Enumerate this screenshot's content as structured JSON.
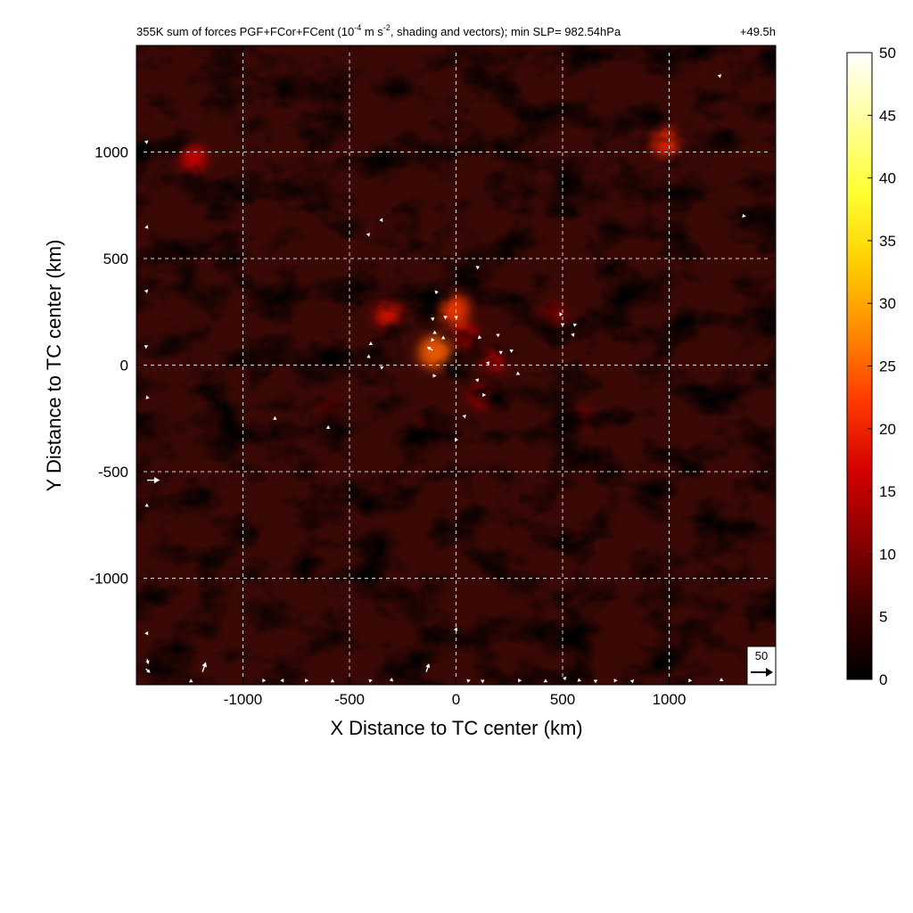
{
  "chart_data": {
    "type": "heatmap",
    "title": {
      "prefix": "355K sum of forces PGF+FCor+FCent (10",
      "exp1": "-4",
      "mid": " m s",
      "exp2": "-2",
      "suffix": ", shading and vectors); min SLP= 982.54hPa",
      "time": "+49.5h"
    },
    "xlabel": "X Distance to TC center (km)",
    "ylabel": "Y Distance to TC center (km)",
    "xlim": [
      -1500,
      1500
    ],
    "ylim": [
      -1500,
      1500
    ],
    "xticks": [
      -1000,
      -500,
      0,
      500,
      1000
    ],
    "yticks": [
      -1000,
      -500,
      0,
      500,
      1000
    ],
    "xtick_labels": [
      "-1000",
      "-500",
      "0",
      "500",
      "1000"
    ],
    "ytick_labels": [
      "-1000",
      "-500",
      "0",
      "500",
      "1000"
    ],
    "grid": true,
    "colorbar": {
      "min": 0,
      "max": 50,
      "ticks": [
        0,
        5,
        10,
        15,
        20,
        25,
        30,
        35,
        40,
        45,
        50
      ],
      "tick_labels": [
        "0",
        "5",
        "10",
        "15",
        "20",
        "25",
        "30",
        "35",
        "40",
        "45",
        "50"
      ],
      "colormap": "hot",
      "colors": [
        "#000000",
        "#3a0000",
        "#8a0000",
        "#d40000",
        "#ff3a00",
        "#ff8a00",
        "#ffd000",
        "#ffff33",
        "#ffff99",
        "#ffffff"
      ]
    },
    "field_background": "#3a0805",
    "field_description": "filamentary field, mostly 3-10 units; spiral bands near the center reaching about 15-25",
    "hotspots": [
      {
        "x": -10,
        "y": 260,
        "value": 22
      },
      {
        "x": -100,
        "y": 60,
        "value": 25
      },
      {
        "x": 40,
        "y": 140,
        "value": 16
      },
      {
        "x": 180,
        "y": 20,
        "value": 14
      },
      {
        "x": 120,
        "y": -140,
        "value": 15
      },
      {
        "x": -320,
        "y": 240,
        "value": 18
      },
      {
        "x": -1230,
        "y": 970,
        "value": 17
      },
      {
        "x": 985,
        "y": 1045,
        "value": 20
      },
      {
        "x": 460,
        "y": 240,
        "value": 12
      },
      {
        "x": -120,
        "y": -300,
        "value": 11
      },
      {
        "x": 600,
        "y": -250,
        "value": 10
      },
      {
        "x": -600,
        "y": -200,
        "value": 9
      }
    ],
    "reference_vector": {
      "label": "50",
      "u": 50,
      "v": 0
    },
    "vectors": [
      {
        "x": -1450,
        "y": -540,
        "u": 45,
        "v": 0
      },
      {
        "x": -1190,
        "y": -1440,
        "u": 12,
        "v": 35
      },
      {
        "x": -140,
        "y": -1440,
        "u": 10,
        "v": 30
      },
      {
        "x": -1455,
        "y": -1425,
        "u": 15,
        "v": -15
      },
      {
        "x": -1450,
        "y": -1380,
        "u": 5,
        "v": -18
      },
      {
        "x": -1250,
        "y": -1480,
        "u": 12,
        "v": -6
      },
      {
        "x": -110,
        "y": 70,
        "u": -20,
        "v": 12
      },
      {
        "x": -60,
        "y": 120,
        "u": 0,
        "v": 14
      },
      {
        "x": -50,
        "y": 230,
        "u": 0,
        "v": -12
      },
      {
        "x": 0,
        "y": 230,
        "u": 2,
        "v": -12
      },
      {
        "x": -90,
        "y": 340,
        "u": -8,
        "v": 8
      },
      {
        "x": -110,
        "y": 220,
        "u": 2,
        "v": -10
      },
      {
        "x": -100,
        "y": 150,
        "u": 0,
        "v": 10
      },
      {
        "x": -110,
        "y": 120,
        "u": -6,
        "v": -8
      },
      {
        "x": 110,
        "y": 130,
        "u": -6,
        "v": -6
      },
      {
        "x": 200,
        "y": 140,
        "u": -10,
        "v": 4
      },
      {
        "x": 260,
        "y": 70,
        "u": 0,
        "v": -10
      },
      {
        "x": 210,
        "y": 60,
        "u": 0,
        "v": -8
      },
      {
        "x": 150,
        "y": 10,
        "u": -8,
        "v": 2
      },
      {
        "x": 100,
        "y": -70,
        "u": -8,
        "v": 2
      },
      {
        "x": 290,
        "y": -40,
        "u": 8,
        "v": -4
      },
      {
        "x": 130,
        "y": -140,
        "u": 8,
        "v": 0
      },
      {
        "x": 40,
        "y": -240,
        "u": 2,
        "v": -8
      },
      {
        "x": 0,
        "y": -350,
        "u": -4,
        "v": -8
      },
      {
        "x": 100,
        "y": 460,
        "u": -6,
        "v": 4
      },
      {
        "x": -350,
        "y": 680,
        "u": 4,
        "v": 8
      },
      {
        "x": -410,
        "y": 610,
        "u": 2,
        "v": -6
      },
      {
        "x": -400,
        "y": 100,
        "u": 0,
        "v": 8
      },
      {
        "x": -410,
        "y": 40,
        "u": 0,
        "v": 8
      },
      {
        "x": -350,
        "y": -10,
        "u": -6,
        "v": 4
      },
      {
        "x": -100,
        "y": -50,
        "u": 6,
        "v": 0
      },
      {
        "x": 490,
        "y": 240,
        "u": -4,
        "v": 6
      },
      {
        "x": 500,
        "y": 190,
        "u": 0,
        "v": -8
      },
      {
        "x": 560,
        "y": 190,
        "u": 6,
        "v": 2
      },
      {
        "x": 550,
        "y": 140,
        "u": 2,
        "v": -6
      },
      {
        "x": 1350,
        "y": 700,
        "u": 8,
        "v": -2
      },
      {
        "x": -850,
        "y": -250,
        "u": 0,
        "v": 8
      },
      {
        "x": -600,
        "y": -290,
        "u": 0,
        "v": 6
      },
      {
        "x": -1450,
        "y": 1050,
        "u": 4,
        "v": 4
      },
      {
        "x": -1450,
        "y": 650,
        "u": 2,
        "v": 6
      },
      {
        "x": -1450,
        "y": 350,
        "u": 4,
        "v": 4
      },
      {
        "x": -1450,
        "y": 90,
        "u": 4,
        "v": 2
      },
      {
        "x": -1450,
        "y": -150,
        "u": -2,
        "v": 6
      },
      {
        "x": -1450,
        "y": -660,
        "u": 6,
        "v": -4
      },
      {
        "x": -1450,
        "y": -1260,
        "u": 4,
        "v": -6
      },
      {
        "x": 0,
        "y": -1240,
        "u": 2,
        "v": 8
      },
      {
        "x": -900,
        "y": -1480,
        "u": 6,
        "v": 0
      },
      {
        "x": -820,
        "y": -1480,
        "u": -4,
        "v": 0
      },
      {
        "x": -700,
        "y": -1480,
        "u": 6,
        "v": 0
      },
      {
        "x": -580,
        "y": -1480,
        "u": 0,
        "v": 6
      },
      {
        "x": -400,
        "y": -1480,
        "u": 6,
        "v": 2
      },
      {
        "x": -300,
        "y": -1480,
        "u": 4,
        "v": -4
      },
      {
        "x": 60,
        "y": -1480,
        "u": 6,
        "v": 2
      },
      {
        "x": 120,
        "y": -1480,
        "u": -4,
        "v": 2
      },
      {
        "x": 300,
        "y": -1480,
        "u": 6,
        "v": 0
      },
      {
        "x": 420,
        "y": -1480,
        "u": 0,
        "v": 6
      },
      {
        "x": 510,
        "y": -1470,
        "u": 6,
        "v": 6
      },
      {
        "x": 580,
        "y": -1480,
        "u": 6,
        "v": -2
      },
      {
        "x": 650,
        "y": -1480,
        "u": -4,
        "v": 2
      },
      {
        "x": 750,
        "y": -1480,
        "u": 6,
        "v": 0
      },
      {
        "x": 830,
        "y": -1480,
        "u": 4,
        "v": 4
      },
      {
        "x": 1100,
        "y": -1480,
        "u": 6,
        "v": 0
      },
      {
        "x": 1250,
        "y": -1480,
        "u": 4,
        "v": -2
      },
      {
        "x": 1240,
        "y": 1360,
        "u": 4,
        "v": 4
      }
    ]
  }
}
